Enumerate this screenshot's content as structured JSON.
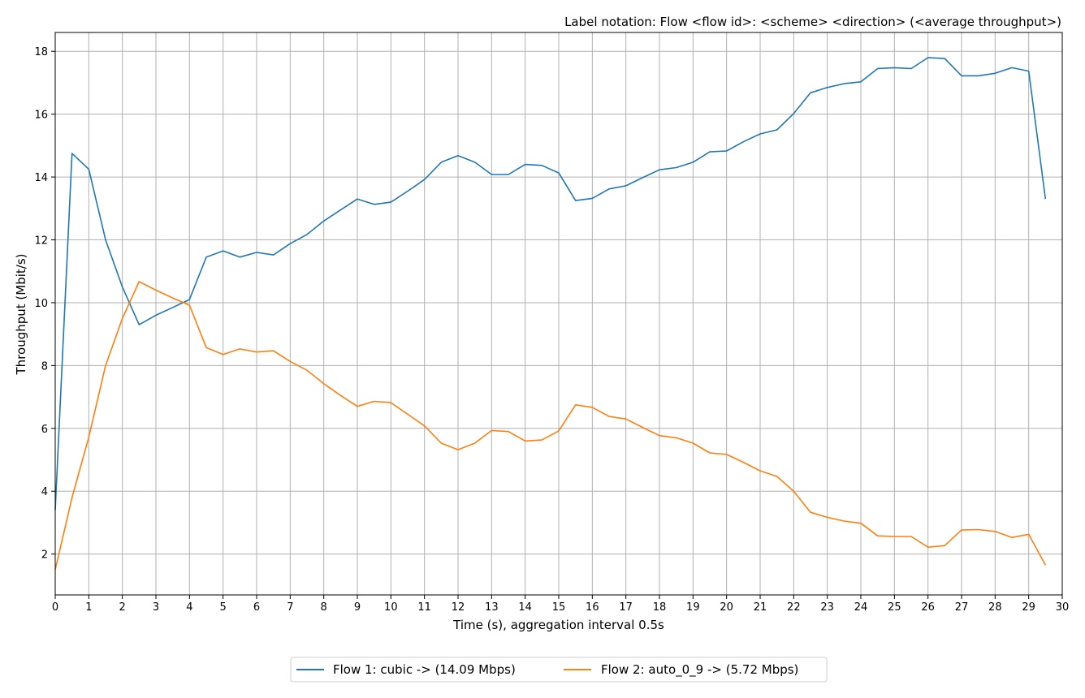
{
  "chart_data": {
    "type": "line",
    "title": "Label notation: Flow <flow id>: <scheme> <direction> (<average throughput>)",
    "xlabel": "Time (s), aggregation interval 0.5s",
    "ylabel": "Throughput (Mbit/s)",
    "xlim": [
      0,
      30
    ],
    "ylim": [
      0.7,
      18.6
    ],
    "xticks": [
      0,
      1,
      2,
      3,
      4,
      5,
      6,
      7,
      8,
      9,
      10,
      11,
      12,
      13,
      14,
      15,
      16,
      17,
      18,
      19,
      20,
      21,
      22,
      23,
      24,
      25,
      26,
      27,
      28,
      29,
      30
    ],
    "yticks": [
      2,
      4,
      6,
      8,
      10,
      12,
      14,
      16,
      18
    ],
    "grid": true,
    "legend_position": "bottom-center",
    "x": [
      0,
      0.5,
      1,
      1.5,
      2,
      2.5,
      3,
      3.5,
      4,
      4.5,
      5,
      5.5,
      6,
      6.5,
      7,
      7.5,
      8,
      8.5,
      9,
      9.5,
      10,
      10.5,
      11,
      11.5,
      12,
      12.5,
      13,
      13.5,
      14,
      14.5,
      15,
      15.5,
      16,
      16.5,
      17,
      17.5,
      18,
      18.5,
      19,
      19.5,
      20,
      20.5,
      21,
      21.5,
      22,
      22.5,
      23,
      23.5,
      24,
      24.5,
      25,
      25.5,
      26,
      26.5,
      27,
      27.5,
      28,
      28.5,
      29,
      29.5
    ],
    "series": [
      {
        "name": "Flow 1: cubic -> (14.09 Mbps)",
        "color": "#1f77b4",
        "values": [
          3.4,
          14.75,
          14.25,
          12.0,
          10.5,
          9.3,
          9.6,
          9.85,
          10.1,
          11.45,
          11.65,
          11.45,
          11.6,
          11.52,
          11.88,
          12.17,
          12.6,
          12.95,
          13.3,
          13.13,
          13.2,
          13.55,
          13.92,
          14.47,
          14.68,
          14.47,
          14.08,
          14.08,
          14.4,
          14.37,
          14.13,
          13.25,
          13.32,
          13.62,
          13.72,
          13.98,
          14.23,
          14.3,
          14.47,
          14.8,
          14.83,
          15.12,
          15.37,
          15.5,
          16.02,
          16.68,
          16.85,
          16.97,
          17.03,
          17.45,
          17.48,
          17.45,
          17.8,
          17.77,
          17.22,
          17.22,
          17.3,
          17.48,
          17.37,
          13.3
        ]
      },
      {
        "name": "Flow 2: auto_0_9 -> (5.72 Mbps)",
        "color": "#ff7f0e",
        "values": [
          1.5,
          3.8,
          5.72,
          8.0,
          9.5,
          10.67,
          10.4,
          10.15,
          9.92,
          8.57,
          8.35,
          8.53,
          8.43,
          8.47,
          8.13,
          7.85,
          7.42,
          7.05,
          6.7,
          6.86,
          6.82,
          6.45,
          6.08,
          5.53,
          5.32,
          5.53,
          5.93,
          5.9,
          5.6,
          5.63,
          5.92,
          6.75,
          6.67,
          6.38,
          6.3,
          6.03,
          5.77,
          5.7,
          5.53,
          5.22,
          5.17,
          4.92,
          4.65,
          4.47,
          4.0,
          3.33,
          3.17,
          3.05,
          2.98,
          2.58,
          2.56,
          2.56,
          2.22,
          2.27,
          2.77,
          2.78,
          2.72,
          2.53,
          2.63,
          1.65
        ]
      }
    ]
  }
}
